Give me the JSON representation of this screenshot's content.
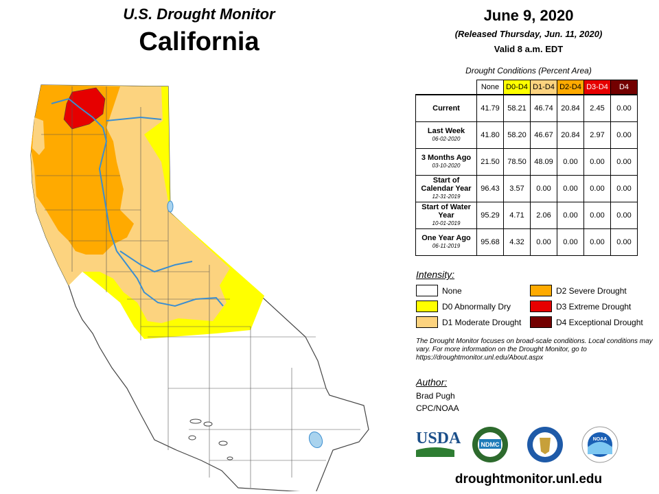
{
  "header": {
    "line1": "U.S. Drought Monitor",
    "line2": "California",
    "date": "June 9, 2020",
    "released": "(Released Thursday, Jun. 11, 2020)",
    "valid": "Valid 8 a.m. EDT"
  },
  "table": {
    "caption": "Drought Conditions (Percent Area)",
    "columns": [
      {
        "label": "None",
        "color": "#ffffff",
        "text_color": "#000000"
      },
      {
        "label": "D0-D4",
        "color": "#ffff00",
        "text_color": "#000000"
      },
      {
        "label": "D1-D4",
        "color": "#fcd37f",
        "text_color": "#000000"
      },
      {
        "label": "D2-D4",
        "color": "#ffaa00",
        "text_color": "#000000"
      },
      {
        "label": "D3-D4",
        "color": "#e60000",
        "text_color": "#ffffff"
      },
      {
        "label": "D4",
        "color": "#730000",
        "text_color": "#ffffff"
      }
    ],
    "rows": [
      {
        "label": "Current",
        "date": "",
        "values": [
          "41.79",
          "58.21",
          "46.74",
          "20.84",
          "2.45",
          "0.00"
        ]
      },
      {
        "label": "Last Week",
        "date": "06-02-2020",
        "values": [
          "41.80",
          "58.20",
          "46.67",
          "20.84",
          "2.97",
          "0.00"
        ]
      },
      {
        "label": "3 Months Ago",
        "date": "03-10-2020",
        "values": [
          "21.50",
          "78.50",
          "48.09",
          "0.00",
          "0.00",
          "0.00"
        ]
      },
      {
        "label": "Start of Calendar Year",
        "date": "12-31-2019",
        "values": [
          "96.43",
          "3.57",
          "0.00",
          "0.00",
          "0.00",
          "0.00"
        ]
      },
      {
        "label": "Start of Water Year",
        "date": "10-01-2019",
        "values": [
          "95.29",
          "4.71",
          "2.06",
          "0.00",
          "0.00",
          "0.00"
        ]
      },
      {
        "label": "One Year Ago",
        "date": "06-11-2019",
        "values": [
          "95.68",
          "4.32",
          "0.00",
          "0.00",
          "0.00",
          "0.00"
        ]
      }
    ]
  },
  "legend": {
    "title": "Intensity:",
    "items": [
      {
        "label": "None",
        "color": "#ffffff"
      },
      {
        "label": "D0 Abnormally Dry",
        "color": "#ffff00"
      },
      {
        "label": "D1 Moderate Drought",
        "color": "#fcd37f"
      },
      {
        "label": "D2 Severe Drought",
        "color": "#ffaa00"
      },
      {
        "label": "D3 Extreme Drought",
        "color": "#e60000"
      },
      {
        "label": "D4 Exceptional Drought",
        "color": "#730000"
      }
    ]
  },
  "note": "The Drought Monitor focuses on broad-scale conditions. Local conditions may vary. For more information on the Drought Monitor, go to https://droughtmonitor.unl.edu/About.aspx",
  "author": {
    "title": "Author:",
    "name": "Brad Pugh",
    "org": "CPC/NOAA"
  },
  "logos": [
    {
      "name": "usda-logo",
      "text": "USDA"
    },
    {
      "name": "ndmc-logo",
      "text": "NDMC"
    },
    {
      "name": "department-of-commerce-seal",
      "text": ""
    },
    {
      "name": "noaa-logo",
      "text": "NOAA"
    }
  ],
  "url": "droughtmonitor.unl.edu"
}
